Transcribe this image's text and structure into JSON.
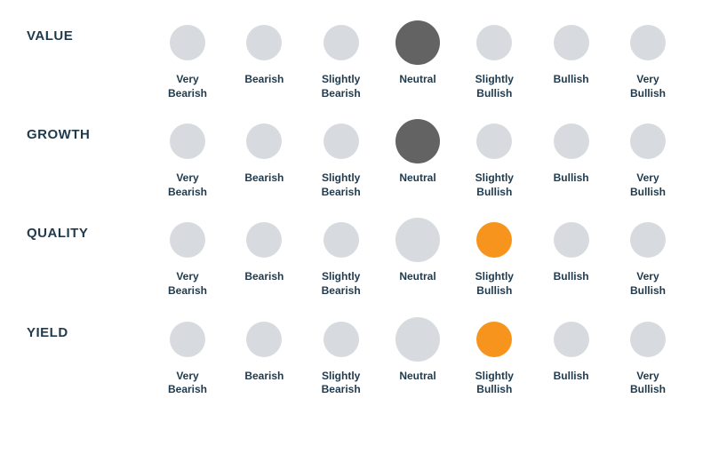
{
  "chart": {
    "type": "dot-scale",
    "background_color": "#ffffff",
    "label_color": "#1f3a4d",
    "label_fontsize": 12,
    "row_label_fontsize": 15,
    "inactive_color": "#d7dbdf",
    "inactive_size": 40,
    "neutral_size": 50,
    "scale_labels": [
      "Very\nBearish",
      "Bearish",
      "Slightly\nBearish",
      "Neutral",
      "Slightly\nBullish",
      "Bullish",
      "Very\nBullish"
    ],
    "rows": [
      {
        "name": "VALUE",
        "selected_index": 3,
        "selected_color": "#636363",
        "selected_size": 50
      },
      {
        "name": "GROWTH",
        "selected_index": 3,
        "selected_color": "#636363",
        "selected_size": 50
      },
      {
        "name": "QUALITY",
        "selected_index": 4,
        "selected_color": "#f7941d",
        "selected_size": 40
      },
      {
        "name": "YIELD",
        "selected_index": 4,
        "selected_color": "#f7941d",
        "selected_size": 40
      }
    ]
  }
}
